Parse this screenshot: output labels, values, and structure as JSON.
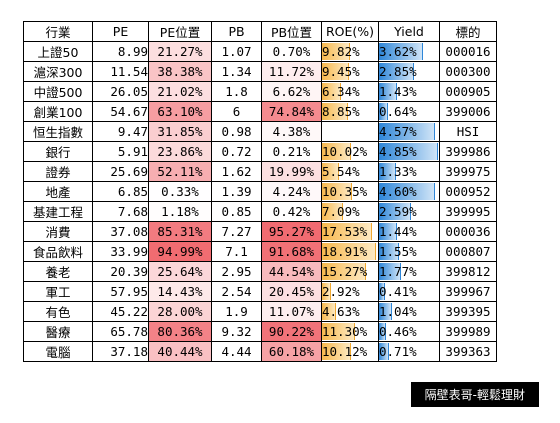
{
  "headers": {
    "name": "行業",
    "pe": "PE",
    "pe_pct": "PE位置",
    "pb": "PB",
    "pb_pct": "PB位置",
    "roe": "ROE(%)",
    "yield": "Yield",
    "code": "標的"
  },
  "rows": [
    {
      "name": "上證50",
      "pe": "8.99",
      "pe_pct": "21.27%",
      "pb": "1.07",
      "pb_pct": "0.70%",
      "roe": "9.82%",
      "yield": "3.62%",
      "code": "000016",
      "pe_pos": 0.2127,
      "pb_pos": 0.007,
      "roe_val": 9.82,
      "yield_val": 3.62
    },
    {
      "name": "滬深300",
      "pe": "11.54",
      "pe_pct": "38.38%",
      "pb": "1.34",
      "pb_pct": "11.72%",
      "roe": "9.45%",
      "yield": "2.85%",
      "code": "000300",
      "pe_pos": 0.3838,
      "pb_pos": 0.1172,
      "roe_val": 9.45,
      "yield_val": 2.85
    },
    {
      "name": "中證500",
      "pe": "26.05",
      "pe_pct": "21.02%",
      "pb": "1.8",
      "pb_pct": "6.62%",
      "roe": "6.34%",
      "yield": "1.43%",
      "code": "000905",
      "pe_pos": 0.2102,
      "pb_pos": 0.0662,
      "roe_val": 6.34,
      "yield_val": 1.43
    },
    {
      "name": "創業100",
      "pe": "54.67",
      "pe_pct": "63.10%",
      "pb": "6",
      "pb_pct": "74.84%",
      "roe": "8.85%",
      "yield": "0.64%",
      "code": "399006",
      "pe_pos": 0.631,
      "pb_pos": 0.7484,
      "roe_val": 8.85,
      "yield_val": 0.64
    },
    {
      "name": "恒生指數",
      "pe": "9.47",
      "pe_pct": "31.85%",
      "pb": "0.98",
      "pb_pct": "4.38%",
      "roe": "",
      "yield": "4.57%",
      "code": "HSI",
      "pe_pos": 0.3185,
      "pb_pos": 0.0438,
      "roe_val": 0,
      "yield_val": 4.57
    },
    {
      "name": "銀行",
      "pe": "5.91",
      "pe_pct": "23.86%",
      "pb": "0.72",
      "pb_pct": "0.21%",
      "roe": "10.02%",
      "yield": "4.85%",
      "code": "399986",
      "pe_pos": 0.2386,
      "pb_pos": 0.0021,
      "roe_val": 10.02,
      "yield_val": 4.85
    },
    {
      "name": "證券",
      "pe": "25.69",
      "pe_pct": "52.11%",
      "pb": "1.62",
      "pb_pct": "19.99%",
      "roe": "5.54%",
      "yield": "1.33%",
      "code": "399975",
      "pe_pos": 0.5211,
      "pb_pos": 0.1999,
      "roe_val": 5.54,
      "yield_val": 1.33
    },
    {
      "name": "地產",
      "pe": "6.85",
      "pe_pct": "0.33%",
      "pb": "1.39",
      "pb_pct": "4.24%",
      "roe": "10.35%",
      "yield": "4.60%",
      "code": "000952",
      "pe_pos": 0.0033,
      "pb_pos": 0.0424,
      "roe_val": 10.35,
      "yield_val": 4.6
    },
    {
      "name": "基建工程",
      "pe": "7.68",
      "pe_pct": "1.18%",
      "pb": "0.85",
      "pb_pct": "0.42%",
      "roe": "7.09%",
      "yield": "2.59%",
      "code": "399995",
      "pe_pos": 0.0118,
      "pb_pos": 0.0042,
      "roe_val": 7.09,
      "yield_val": 2.59
    },
    {
      "name": "消費",
      "pe": "37.08",
      "pe_pct": "85.31%",
      "pb": "7.27",
      "pb_pct": "95.27%",
      "roe": "17.53%",
      "yield": "1.44%",
      "code": "000036",
      "pe_pos": 0.8531,
      "pb_pos": 0.9527,
      "roe_val": 17.53,
      "yield_val": 1.44
    },
    {
      "name": "食品飲料",
      "pe": "33.99",
      "pe_pct": "94.99%",
      "pb": "7.1",
      "pb_pct": "91.68%",
      "roe": "18.91%",
      "yield": "1.55%",
      "code": "000807",
      "pe_pos": 0.9499,
      "pb_pos": 0.9168,
      "roe_val": 18.91,
      "yield_val": 1.55
    },
    {
      "name": "養老",
      "pe": "20.39",
      "pe_pct": "25.64%",
      "pb": "2.95",
      "pb_pct": "44.54%",
      "roe": "15.27%",
      "yield": "1.77%",
      "code": "399812",
      "pe_pos": 0.2564,
      "pb_pos": 0.4454,
      "roe_val": 15.27,
      "yield_val": 1.77
    },
    {
      "name": "軍工",
      "pe": "57.95",
      "pe_pct": "14.43%",
      "pb": "2.54",
      "pb_pct": "20.45%",
      "roe": "2.92%",
      "yield": "0.41%",
      "code": "399967",
      "pe_pos": 0.1443,
      "pb_pos": 0.2045,
      "roe_val": 2.92,
      "yield_val": 0.41
    },
    {
      "name": "有色",
      "pe": "45.22",
      "pe_pct": "28.00%",
      "pb": "1.9",
      "pb_pct": "11.07%",
      "roe": "4.63%",
      "yield": "1.04%",
      "code": "399395",
      "pe_pos": 0.28,
      "pb_pos": 0.1107,
      "roe_val": 4.63,
      "yield_val": 1.04
    },
    {
      "name": "醫療",
      "pe": "65.78",
      "pe_pct": "80.36%",
      "pb": "9.32",
      "pb_pct": "90.22%",
      "roe": "11.30%",
      "yield": "0.46%",
      "code": "399989",
      "pe_pos": 0.8036,
      "pb_pos": 0.9022,
      "roe_val": 11.3,
      "yield_val": 0.46
    },
    {
      "name": "電腦",
      "pe": "37.18",
      "pe_pct": "40.44%",
      "pb": "4.44",
      "pb_pct": "60.18%",
      "roe": "10.12%",
      "yield": "0.71%",
      "code": "399363",
      "pe_pos": 0.4044,
      "pb_pos": 0.6018,
      "roe_val": 10.12,
      "yield_val": 0.71
    }
  ],
  "footer": "隔壁表哥-輕鬆理財",
  "colors": {
    "heat_low": "#ffffff",
    "heat_high": "#f0646a",
    "roe_bar": "#f7b84d",
    "yield_bar": "#2e86d8"
  }
}
